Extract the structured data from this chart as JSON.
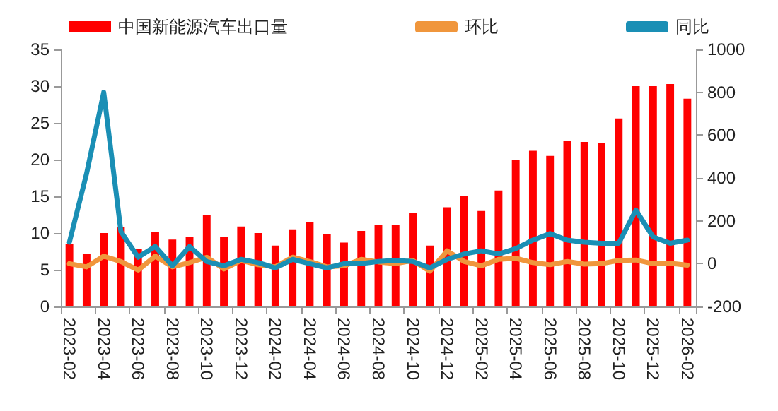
{
  "chart_data": {
    "type": "bar",
    "categories": [
      "2023-02",
      null,
      "2023-04",
      null,
      "2023-06",
      null,
      "2023-08",
      null,
      "2023-10",
      null,
      "2023-12",
      null,
      "2024-02",
      null,
      "2024-04",
      null,
      "2024-06",
      null,
      "2024-08",
      null,
      "2024-10",
      null,
      "2024-12",
      null,
      "2025-02",
      null,
      "2025-04",
      null,
      "2025-06",
      null,
      "2025-08",
      null,
      "2025-10",
      null,
      "2025-12",
      null,
      "2026-02"
    ],
    "series": [
      {
        "name": "中国新能源汽车出口量",
        "color": "#ff0000",
        "values": [
          8.5,
          7.2,
          10,
          10.8,
          7.8,
          10.1,
          9.1,
          9.5,
          12.4,
          9.5,
          10.9,
          10,
          8.3,
          10.5,
          11.5,
          9.8,
          8.7,
          10.3,
          11.1,
          11.1,
          12.8,
          8.3,
          13.5,
          15,
          13,
          15.8,
          20,
          21.2,
          20.5,
          22.6,
          22.4,
          22.3,
          25.6,
          30,
          30,
          30.3,
          28.3
        ]
      },
      {
        "name": "环比",
        "type": "line",
        "axis": "y2",
        "color": "#f0963c",
        "values": [
          0,
          -15,
          35,
          10,
          -30,
          35,
          -15,
          5,
          30,
          -25,
          15,
          -5,
          -15,
          30,
          10,
          -15,
          -10,
          20,
          8,
          0,
          15,
          -35,
          60,
          10,
          -10,
          20,
          25,
          5,
          -5,
          10,
          -2,
          0,
          15,
          17,
          0,
          2,
          -7
        ]
      },
      {
        "name": "同比",
        "type": "line",
        "axis": "y2",
        "color": "#1a8fb5",
        "values": [
          100,
          420,
          800,
          150,
          30,
          80,
          -10,
          80,
          10,
          -10,
          20,
          5,
          -20,
          20,
          0,
          -20,
          0,
          0,
          10,
          15,
          10,
          -20,
          20,
          45,
          60,
          45,
          70,
          110,
          140,
          110,
          100,
          95,
          95,
          250,
          125,
          95,
          110
        ]
      }
    ],
    "ylim": [
      0,
      35
    ],
    "yticks": [
      0,
      5,
      10,
      15,
      20,
      25,
      30,
      35
    ],
    "y2lim": [
      -200,
      1000
    ],
    "y2ticks": [
      -200,
      0,
      200,
      400,
      600,
      800,
      1000
    ],
    "grid": false,
    "legend": "top",
    "marker": "none",
    "line_style": "solid"
  }
}
